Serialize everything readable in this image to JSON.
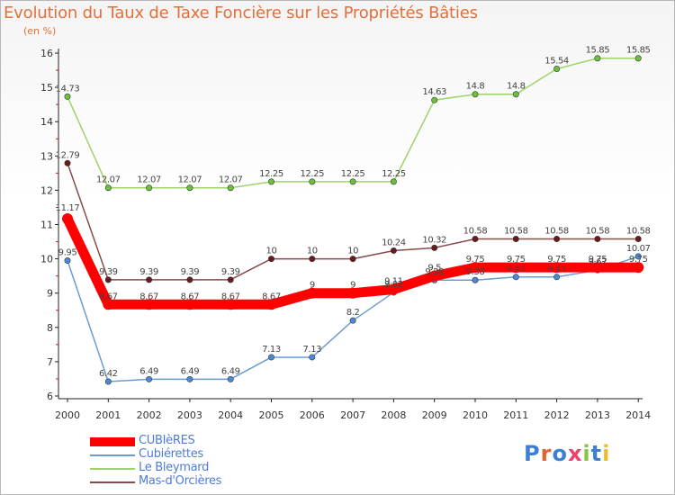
{
  "title": "Evolution du Taux de Taxe Foncière sur les Propriétés Bâties",
  "subtitle": "(en %)",
  "logo": {
    "text": "Proxiti",
    "colors": [
      "#3c7fd6",
      "#e0652d",
      "#3c7fd6",
      "#ef3f6b",
      "#8ac441",
      "#3c7fd6",
      "#f2b927"
    ]
  },
  "chart_data": {
    "type": "line",
    "title": "Evolution du Taux de Taxe Foncière sur les Propriétés Bâties",
    "ylabel": "(en %)",
    "xlabel": "",
    "ylim": [
      6,
      16
    ],
    "yticks": [
      6,
      7,
      8,
      9,
      10,
      11,
      12,
      13,
      14,
      15,
      16
    ],
    "grid": false,
    "legend_position": "bottom-left",
    "x": [
      "2000",
      "2001",
      "2002",
      "2003",
      "2004",
      "2005",
      "2006",
      "2007",
      "2008",
      "2009",
      "2010",
      "2011",
      "2012",
      "2013",
      "2014"
    ],
    "series": [
      {
        "name": "CUBIèRES",
        "color": "#ff0000",
        "marker_color": "#ff0000",
        "values": [
          11.17,
          8.67,
          8.67,
          8.67,
          8.67,
          8.67,
          9,
          9,
          9.11,
          9.5,
          9.75,
          9.75,
          9.75,
          9.75,
          9.75
        ],
        "labels": [
          "11.17",
          "8.67",
          "8.67",
          "8.67",
          "8.67",
          "8.67",
          "9",
          "9",
          "9.11",
          "9.5",
          "9.75",
          "9.75",
          "9.75",
          "9.75",
          "9.75"
        ]
      },
      {
        "name": "Cubiérettes",
        "color": "#6b9bd1",
        "marker_color": "#4a89d8",
        "values": [
          9.95,
          6.42,
          6.49,
          6.49,
          6.49,
          7.13,
          7.13,
          8.2,
          9.02,
          9.38,
          9.38,
          9.47,
          9.47,
          9.67,
          10.07
        ],
        "labels": [
          "9.95",
          "6.42",
          "6.49",
          "6.49",
          "6.49",
          "7.13",
          "7.13",
          "8.2",
          "9.02",
          "9.38",
          "9.38",
          "9.47",
          "9.47",
          "9.67",
          "10.07"
        ]
      },
      {
        "name": "Le Bleymard",
        "color": "#9ed36a",
        "marker_color": "#6cc13a",
        "values": [
          14.73,
          12.07,
          12.07,
          12.07,
          12.07,
          12.25,
          12.25,
          12.25,
          12.25,
          14.63,
          14.8,
          14.8,
          15.54,
          15.85,
          15.85
        ],
        "labels": [
          "14.73",
          "12.07",
          "12.07",
          "12.07",
          "12.07",
          "12.25",
          "12.25",
          "12.25",
          "12.25",
          "14.63",
          "14.8",
          "14.8",
          "15.54",
          "15.85",
          "15.85"
        ]
      },
      {
        "name": "Mas-d'Orcières",
        "color": "#8a4a4a",
        "marker_color": "#6a1a1a",
        "values": [
          12.79,
          9.39,
          9.39,
          9.39,
          9.39,
          10,
          10,
          10,
          10.24,
          10.32,
          10.58,
          10.58,
          10.58,
          10.58,
          10.58
        ],
        "labels": [
          "12.79",
          "9.39",
          "9.39",
          "9.39",
          "9.39",
          "10",
          "10",
          "10",
          "10.24",
          "10.32",
          "10.58",
          "10.58",
          "10.58",
          "10.58",
          "10.58"
        ]
      }
    ]
  }
}
